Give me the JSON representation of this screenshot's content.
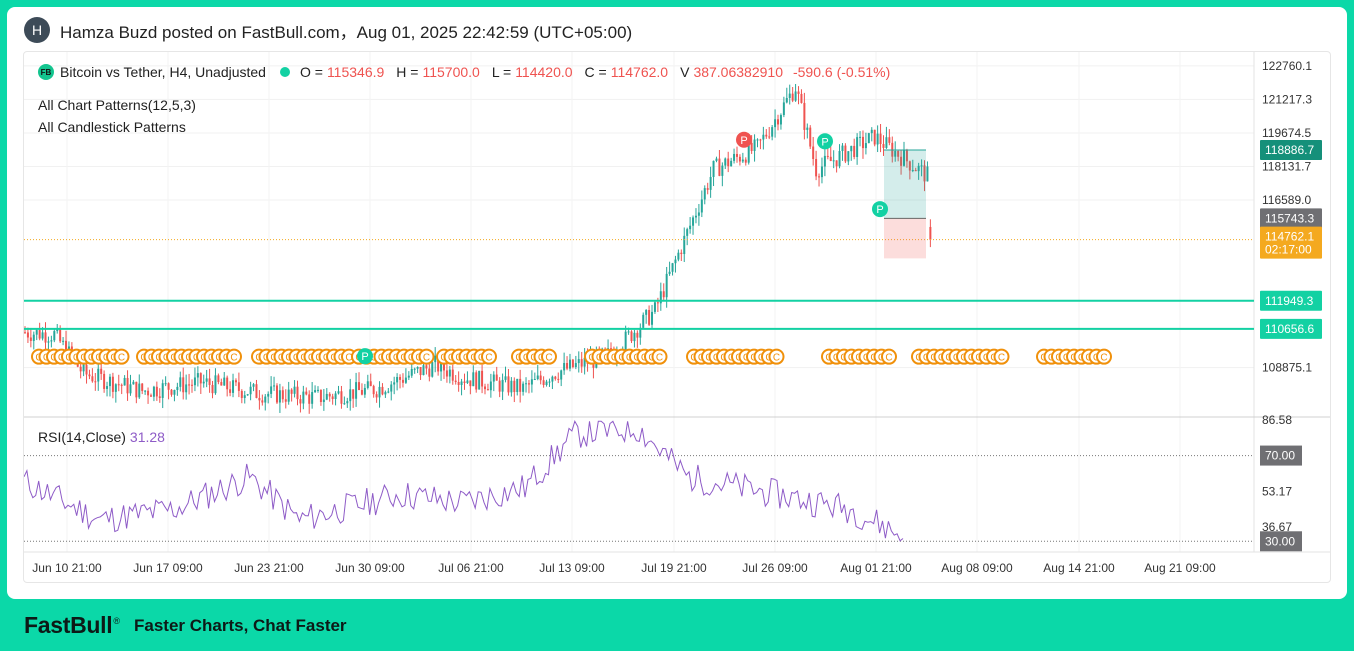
{
  "post": {
    "avatar_letter": "H",
    "text": "Hamza Buzd posted on FastBull.com，Aug 01, 2025 22:42:59 (UTC+05:00)"
  },
  "legend": {
    "badge": "FB",
    "symbol": "Bitcoin vs Tether, H4, Unadjusted",
    "o_label": "O =",
    "o_value": "115346.9",
    "h_label": "H =",
    "h_value": "115700.0",
    "l_label": "L =",
    "l_value": "114420.0",
    "c_label": "C =",
    "c_value": "114762.0",
    "v_label": "V",
    "v_value": "387.06382910",
    "change": "-590.6 (-0.51%)",
    "indicator1": "All Chart Patterns(12,5,3)",
    "indicator2": "All Candlestick Patterns"
  },
  "rsi": {
    "label": "RSI(14,Close)",
    "value": "31.28"
  },
  "footer": {
    "logo": "FastBull",
    "tagline": "Faster Charts, Chat Faster"
  },
  "colors": {
    "up": "#26a69a",
    "down": "#ef5350",
    "accent": "#13d1a3",
    "rsi": "#8e5bc7",
    "pattern": "#f0900a",
    "brand_bg": "#0bd8a8"
  },
  "chart_data": [
    {
      "type": "candlestick",
      "title": "Bitcoin vs Tether, H4, Unadjusted",
      "x_tick_labels": [
        "Jun 10 21:00",
        "Jun 17 09:00",
        "Jun 23 21:00",
        "Jun 30 09:00",
        "Jul 06 21:00",
        "Jul 13 09:00",
        "Jul 19 21:00",
        "Jul 26 09:00",
        "Aug 01 21:00",
        "Aug 08 09:00",
        "Aug 14 21:00",
        "Aug 21 09:00"
      ],
      "y_tick_labels": [
        "122760.1",
        "121217.3",
        "119674.5",
        "118131.7",
        "116589.0",
        "108875.1"
      ],
      "ylim": [
        106600,
        123400
      ],
      "price_badges": [
        {
          "text": "118886.7",
          "value": 118886.7,
          "color": "#15907a"
        },
        {
          "text": "115743.3",
          "value": 115743.3,
          "color": "#6f6f73"
        },
        {
          "text": "114762.1",
          "sub": "02:17:00",
          "value": 114762.1,
          "color": "#f4a91f"
        },
        {
          "text": "111949.3",
          "value": 111949.3,
          "color": "#13d1a3"
        },
        {
          "text": "110656.6",
          "value": 110656.6,
          "color": "#13d1a3"
        }
      ],
      "horizontal_lines": [
        111949.3,
        110656.6
      ],
      "current_price": 114762.1,
      "position_box": {
        "entry": 115743.3,
        "target": 118886.7,
        "stop": 113900
      },
      "pattern_markers": [
        {
          "label": "P",
          "type": "bullish",
          "price": 109400
        },
        {
          "label": "P",
          "type": "bearish",
          "price": 119360
        },
        {
          "label": "P",
          "type": "bullish",
          "price": 119290
        },
        {
          "label": "P",
          "type": "bullish",
          "price": 116170
        }
      ],
      "candlestick_marker_label": "C"
    },
    {
      "type": "line",
      "title": "RSI(14,Close)",
      "y_tick_labels": [
        "86.58",
        "53.17",
        "36.67"
      ],
      "levels": [
        {
          "text": "70.00",
          "value": 70
        },
        {
          "text": "30.00",
          "value": 30
        }
      ],
      "ylim": [
        25,
        88
      ],
      "last_value": 31.28
    }
  ]
}
